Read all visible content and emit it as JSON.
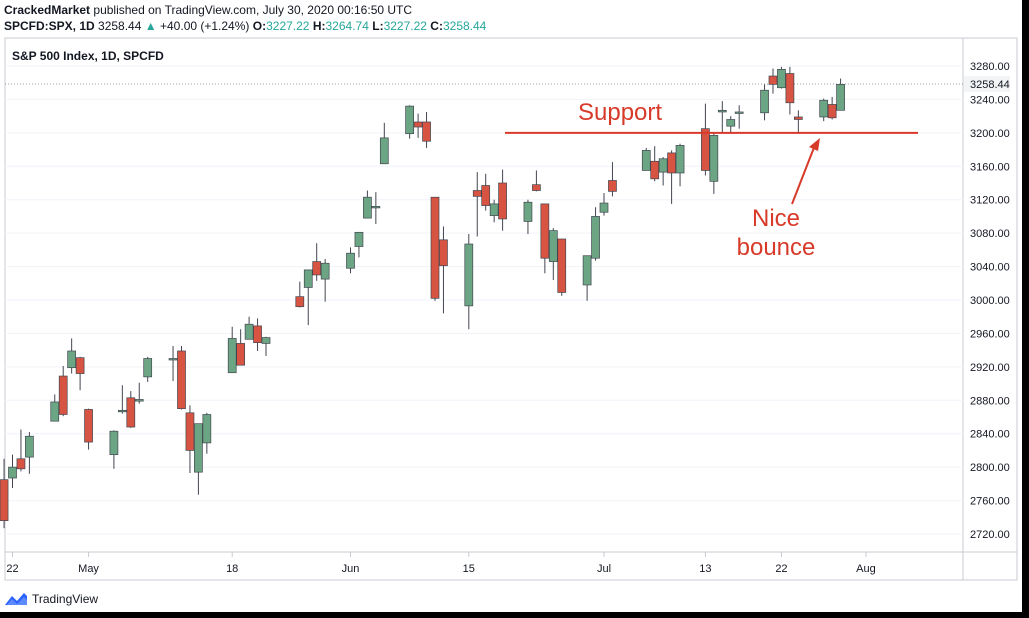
{
  "header": {
    "author": "CrackedMarket",
    "published_text": "published on TradingView.com, July 30, 2020 00:16:50 UTC",
    "symbol": "SPCFD:SPX, 1D",
    "last": "3258.44",
    "change_arrow": "▲",
    "change": "+40.00 (+1.24%)",
    "o_label": "O:",
    "o_value": "3227.22",
    "h_label": "H:",
    "h_value": "3264.74",
    "l_label": "L:",
    "l_value": "3227.22",
    "c_label": "C:",
    "c_value": "3258.44"
  },
  "footer": {
    "brand": "TradingView",
    "logo_icon": "tradingview-logo-icon"
  },
  "colors": {
    "up": "#26a69a",
    "up_fill": "#6ba583",
    "down": "#ef5350",
    "down_fill": "#d75442",
    "annotation": "#d83a2a",
    "grid": "#e0e3eb",
    "text": "#131722"
  },
  "chart_data": {
    "type": "candlestick",
    "title": "S&P 500 Index, 1D, SPCFD",
    "ylim": [
      2690,
      3310
    ],
    "y_ticks": [
      "3280.00",
      "3240.00",
      "3200.00",
      "3160.00",
      "3120.00",
      "3080.00",
      "3040.00",
      "3000.00",
      "2960.00",
      "2920.00",
      "2880.00",
      "2840.00",
      "2800.00",
      "2760.00",
      "2720.00"
    ],
    "x_tick_labels": [
      "22",
      "May",
      "18",
      "Jun",
      "15",
      "Jul",
      "13",
      "22",
      "Aug"
    ],
    "last_price_label": "3258.44",
    "support_level": 3200,
    "annotations": [
      "Support",
      "Nice bounce"
    ],
    "candles": [
      {
        "date": "2020-04-21",
        "o": 2785,
        "h": 2810,
        "l": 2727,
        "c": 2736
      },
      {
        "date": "2020-04-22",
        "o": 2787,
        "h": 2815,
        "l": 2775,
        "c": 2800
      },
      {
        "date": "2020-04-23",
        "o": 2810,
        "h": 2845,
        "l": 2795,
        "c": 2798
      },
      {
        "date": "2020-04-24",
        "o": 2812,
        "h": 2842,
        "l": 2792,
        "c": 2837
      },
      {
        "date": "2020-04-27",
        "o": 2855,
        "h": 2887,
        "l": 2855,
        "c": 2878
      },
      {
        "date": "2020-04-28",
        "o": 2909,
        "h": 2921,
        "l": 2861,
        "c": 2863
      },
      {
        "date": "2020-04-29",
        "o": 2919,
        "h": 2954,
        "l": 2912,
        "c": 2939
      },
      {
        "date": "2020-04-30",
        "o": 2931,
        "h": 2932,
        "l": 2892,
        "c": 2912
      },
      {
        "date": "2020-05-01",
        "o": 2869,
        "h": 2870,
        "l": 2821,
        "c": 2830
      },
      {
        "date": "2020-05-04",
        "o": 2815,
        "h": 2844,
        "l": 2798,
        "c": 2843
      },
      {
        "date": "2020-05-05",
        "o": 2868,
        "h": 2898,
        "l": 2864,
        "c": 2868
      },
      {
        "date": "2020-05-06",
        "o": 2883,
        "h": 2891,
        "l": 2847,
        "c": 2848
      },
      {
        "date": "2020-05-07",
        "o": 2879,
        "h": 2901,
        "l": 2876,
        "c": 2881
      },
      {
        "date": "2020-05-08",
        "o": 2908,
        "h": 2932,
        "l": 2902,
        "c": 2930
      },
      {
        "date": "2020-05-11",
        "o": 2930,
        "h": 2945,
        "l": 2903,
        "c": 2930
      },
      {
        "date": "2020-05-12",
        "o": 2939,
        "h": 2945,
        "l": 2869,
        "c": 2870
      },
      {
        "date": "2020-05-13",
        "o": 2865,
        "h": 2874,
        "l": 2793,
        "c": 2820
      },
      {
        "date": "2020-05-14",
        "o": 2794,
        "h": 2852,
        "l": 2767,
        "c": 2852
      },
      {
        "date": "2020-05-15",
        "o": 2829,
        "h": 2865,
        "l": 2816,
        "c": 2863
      },
      {
        "date": "2020-05-18",
        "o": 2913,
        "h": 2968,
        "l": 2913,
        "c": 2954
      },
      {
        "date": "2020-05-19",
        "o": 2948,
        "h": 2965,
        "l": 2922,
        "c": 2922
      },
      {
        "date": "2020-05-20",
        "o": 2953,
        "h": 2980,
        "l": 2953,
        "c": 2971
      },
      {
        "date": "2020-05-21",
        "o": 2969,
        "h": 2978,
        "l": 2939,
        "c": 2949
      },
      {
        "date": "2020-05-22",
        "o": 2948,
        "h": 2956,
        "l": 2933,
        "c": 2955
      },
      {
        "date": "2020-05-26",
        "o": 3004,
        "h": 3022,
        "l": 2991,
        "c": 2992
      },
      {
        "date": "2020-05-27",
        "o": 3015,
        "h": 3036,
        "l": 2970,
        "c": 3036
      },
      {
        "date": "2020-05-28",
        "o": 3046,
        "h": 3068,
        "l": 3023,
        "c": 3030
      },
      {
        "date": "2020-05-29",
        "o": 3025,
        "h": 3049,
        "l": 2998,
        "c": 3044
      },
      {
        "date": "2020-06-01",
        "o": 3038,
        "h": 3063,
        "l": 3032,
        "c": 3056
      },
      {
        "date": "2020-06-02",
        "o": 3064,
        "h": 3081,
        "l": 3051,
        "c": 3081
      },
      {
        "date": "2020-06-03",
        "o": 3098,
        "h": 3131,
        "l": 3098,
        "c": 3123
      },
      {
        "date": "2020-06-04",
        "o": 3112,
        "h": 3129,
        "l": 3091,
        "c": 3112
      },
      {
        "date": "2020-06-05",
        "o": 3163,
        "h": 3212,
        "l": 3163,
        "c": 3194
      },
      {
        "date": "2020-06-08",
        "o": 3199,
        "h": 3233,
        "l": 3193,
        "c": 3232
      },
      {
        "date": "2020-06-09",
        "o": 3213,
        "h": 3223,
        "l": 3194,
        "c": 3207
      },
      {
        "date": "2020-06-10",
        "o": 3213,
        "h": 3225,
        "l": 3182,
        "c": 3190
      },
      {
        "date": "2020-06-11",
        "o": 3123,
        "h": 3123,
        "l": 2999,
        "c": 3002
      },
      {
        "date": "2020-06-12",
        "o": 3072,
        "h": 3088,
        "l": 2984,
        "c": 3041
      },
      {
        "date": "2020-06-15",
        "o": 2993,
        "h": 3079,
        "l": 2965,
        "c": 3067
      },
      {
        "date": "2020-06-16",
        "o": 3131,
        "h": 3153,
        "l": 3076,
        "c": 3124
      },
      {
        "date": "2020-06-17",
        "o": 3137,
        "h": 3151,
        "l": 3107,
        "c": 3113
      },
      {
        "date": "2020-06-18",
        "o": 3101,
        "h": 3120,
        "l": 3093,
        "c": 3115
      },
      {
        "date": "2020-06-19",
        "o": 3140,
        "h": 3156,
        "l": 3083,
        "c": 3097
      },
      {
        "date": "2020-06-22",
        "o": 3094,
        "h": 3120,
        "l": 3079,
        "c": 3117
      },
      {
        "date": "2020-06-23",
        "o": 3138,
        "h": 3155,
        "l": 3130,
        "c": 3131
      },
      {
        "date": "2020-06-24",
        "o": 3115,
        "h": 3115,
        "l": 3032,
        "c": 3050
      },
      {
        "date": "2020-06-25",
        "o": 3046,
        "h": 3086,
        "l": 3024,
        "c": 3083
      },
      {
        "date": "2020-06-26",
        "o": 3073,
        "h": 3073,
        "l": 3005,
        "c": 3009
      },
      {
        "date": "2020-06-29",
        "o": 3018,
        "h": 3053,
        "l": 2999,
        "c": 3053
      },
      {
        "date": "2020-06-30",
        "o": 3050,
        "h": 3111,
        "l": 3047,
        "c": 3100
      },
      {
        "date": "2020-07-01",
        "o": 3105,
        "h": 3128,
        "l": 3101,
        "c": 3116
      },
      {
        "date": "2020-07-02",
        "o": 3143,
        "h": 3165,
        "l": 3124,
        "c": 3130
      },
      {
        "date": "2020-07-06",
        "o": 3155,
        "h": 3182,
        "l": 3155,
        "c": 3179
      },
      {
        "date": "2020-07-07",
        "o": 3166,
        "h": 3184,
        "l": 3142,
        "c": 3145
      },
      {
        "date": "2020-07-08",
        "o": 3153,
        "h": 3171,
        "l": 3137,
        "c": 3169
      },
      {
        "date": "2020-07-09",
        "o": 3176,
        "h": 3179,
        "l": 3115,
        "c": 3152
      },
      {
        "date": "2020-07-10",
        "o": 3152,
        "h": 3187,
        "l": 3136,
        "c": 3185
      },
      {
        "date": "2020-07-13",
        "o": 3205,
        "h": 3235,
        "l": 3149,
        "c": 3155
      },
      {
        "date": "2020-07-14",
        "o": 3142,
        "h": 3200,
        "l": 3127,
        "c": 3197
      },
      {
        "date": "2020-07-15",
        "o": 3225,
        "h": 3238,
        "l": 3200,
        "c": 3227
      },
      {
        "date": "2020-07-16",
        "o": 3208,
        "h": 3220,
        "l": 3199,
        "c": 3216
      },
      {
        "date": "2020-07-17",
        "o": 3224,
        "h": 3233,
        "l": 3205,
        "c": 3225
      },
      {
        "date": "2020-07-20",
        "o": 3224,
        "h": 3258,
        "l": 3215,
        "c": 3251
      },
      {
        "date": "2020-07-21",
        "o": 3268,
        "h": 3277,
        "l": 3247,
        "c": 3258
      },
      {
        "date": "2020-07-22",
        "o": 3254,
        "h": 3279,
        "l": 3253,
        "c": 3276
      },
      {
        "date": "2020-07-23",
        "o": 3271,
        "h": 3279,
        "l": 3222,
        "c": 3236
      },
      {
        "date": "2020-07-24",
        "o": 3219,
        "h": 3227,
        "l": 3200,
        "c": 3216
      },
      {
        "date": "2020-07-27",
        "o": 3219,
        "h": 3241,
        "l": 3214,
        "c": 3239
      },
      {
        "date": "2020-07-28",
        "o": 3234,
        "h": 3243,
        "l": 3216,
        "c": 3218
      },
      {
        "date": "2020-07-29",
        "o": 3227,
        "h": 3265,
        "l": 3227,
        "c": 3258
      }
    ]
  }
}
